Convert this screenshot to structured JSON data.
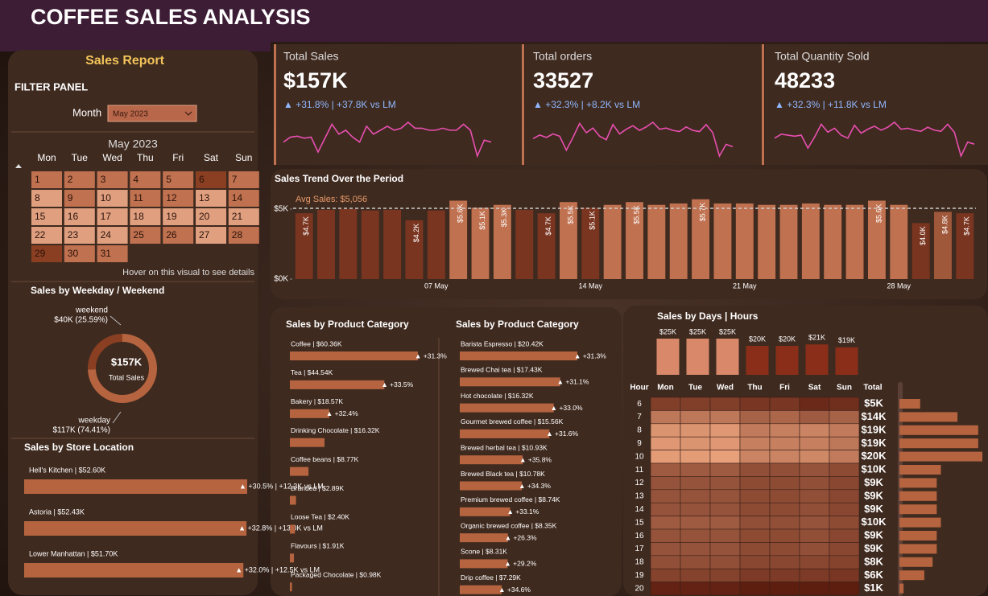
{
  "header": {
    "title": "COFFEE SALES ANALYSIS"
  },
  "filter": {
    "title": "Sales Report",
    "panel_title": "FILTER PANEL",
    "month_label": "Month",
    "month_value": "May 2023"
  },
  "calendar": {
    "title": "May 2023",
    "weekdays": [
      "Mon",
      "Tue",
      "Wed",
      "Thu",
      "Fri",
      "Sat",
      "Sun"
    ],
    "days": [
      1,
      2,
      3,
      4,
      5,
      6,
      7,
      8,
      9,
      10,
      11,
      12,
      13,
      14,
      15,
      16,
      17,
      18,
      19,
      20,
      21,
      22,
      23,
      24,
      25,
      26,
      27,
      28,
      29,
      30,
      31
    ],
    "day_colors": [
      "#c0714f",
      "#c0714f",
      "#c0714f",
      "#c0714f",
      "#c0714f",
      "#8a3f22",
      "#c0714f",
      "#e0a080",
      "#c0714f",
      "#e0a080",
      "#c0714f",
      "#c0714f",
      "#e0a080",
      "#c0714f",
      "#e0a080",
      "#e0a080",
      "#e0a080",
      "#e0a080",
      "#e0a080",
      "#e0a080",
      "#e0a080",
      "#e0a080",
      "#e0a080",
      "#e0a080",
      "#c0714f",
      "#c0714f",
      "#e0a080",
      "#c0714f",
      "#8a3f22",
      "#c0714f",
      "#c0714f"
    ],
    "hint": "Hover on this visual to see details"
  },
  "weekday_weekend": {
    "title": "Sales by Weekday / Weekend",
    "center_value": "$157K",
    "center_label": "Total Sales",
    "categories": [
      "weekend",
      "weekday"
    ],
    "values": [
      25.59,
      74.41
    ],
    "value_labels": [
      "$40K (25.59%)",
      "$117K (74.41%)"
    ],
    "colors": [
      "#8a3f22",
      "#b5643f"
    ]
  },
  "store_location": {
    "title": "Sales by Store Location",
    "labels": [
      "Hell's Kitchen | $52.60K",
      "Astoria | $52.43K",
      "Lower Manhattan | $51.70K"
    ],
    "values": [
      52.6,
      52.43,
      51.7
    ],
    "growth": [
      "▲ +30.5% | +12.3K vs LM",
      "▲ +32.8% | +13.0K vs LM",
      "▲ +32.0% | +12.5K vs LM"
    ],
    "color": "#b5643f"
  },
  "kpis": [
    {
      "title": "Total Sales",
      "value": "$157K",
      "change": "▲ +31.8% | +37.8K vs LM",
      "trend": [
        4.7,
        4.95,
        5.0,
        4.9,
        4.95,
        4.2,
        4.9,
        5.6,
        5.1,
        5.3,
        4.95,
        4.7,
        5.5,
        5.1,
        5.3,
        5.5,
        5.3,
        5.4,
        5.7,
        5.4,
        5.4,
        5.3,
        5.3,
        5.4,
        5.3,
        5.3,
        5.6,
        5.3,
        4.0,
        4.8,
        4.7
      ]
    },
    {
      "title": "Total orders",
      "value": "33527",
      "change": "▲ +32.3% | +8.2K vs LM",
      "trend": [
        1050,
        1080,
        1060,
        1090,
        1070,
        950,
        1060,
        1180,
        1100,
        1140,
        1070,
        1040,
        1170,
        1090,
        1130,
        1160,
        1120,
        1150,
        1190,
        1130,
        1140,
        1120,
        1110,
        1150,
        1120,
        1110,
        1170,
        1100,
        900,
        1000,
        980
      ]
    },
    {
      "title": "Total Quantity Sold",
      "value": "48233",
      "change": "▲ +32.3% | +11.8K vs LM",
      "trend": [
        1500,
        1540,
        1530,
        1520,
        1530,
        1400,
        1510,
        1640,
        1560,
        1600,
        1530,
        1500,
        1630,
        1550,
        1590,
        1620,
        1580,
        1610,
        1660,
        1590,
        1600,
        1580,
        1570,
        1610,
        1580,
        1570,
        1640,
        1560,
        1320,
        1460,
        1440
      ]
    }
  ],
  "sparkline_color": "#e84fb0",
  "sales_trend": {
    "type": "bar",
    "title": "Sales Trend Over the Period",
    "avg_label": "Avg Sales: $5,056",
    "avg": 5056,
    "categories": [
      null,
      null,
      null,
      null,
      null,
      null,
      "07 May",
      null,
      null,
      null,
      null,
      null,
      null,
      "14 May",
      null,
      null,
      null,
      null,
      null,
      null,
      "21 May",
      null,
      null,
      null,
      null,
      null,
      null,
      "28 May",
      null,
      null,
      null
    ],
    "values": [
      4700,
      4950,
      5000,
      4900,
      4950,
      4200,
      4900,
      5600,
      5100,
      5300,
      4950,
      4700,
      5500,
      5100,
      5300,
      5500,
      5300,
      5400,
      5700,
      5400,
      5400,
      5300,
      5300,
      5400,
      5300,
      5300,
      5600,
      5300,
      4000,
      4800,
      4700
    ],
    "value_labels": [
      "$4.7K",
      null,
      null,
      null,
      null,
      "$4.2K",
      null,
      "$5.6K",
      "$5.1K",
      "$5.3K",
      null,
      "$4.7K",
      "$5.5K",
      "$5.1K",
      null,
      "$5.5K",
      null,
      null,
      "$5.7K",
      null,
      null,
      null,
      null,
      null,
      null,
      null,
      "$5.6K",
      null,
      "$4.0K",
      "$4.8K",
      "$4.7K"
    ],
    "colors": [
      "#7a3520",
      "#7a3520",
      "#7a3520",
      "#7a3520",
      "#7a3520",
      "#7a3520",
      "#7a3520",
      "#c0714f",
      "#c0714f",
      "#c0714f",
      "#7a3520",
      "#7a3520",
      "#c0714f",
      "#7a3520",
      "#c0714f",
      "#c0714f",
      "#c0714f",
      "#c0714f",
      "#c0714f",
      "#c0714f",
      "#c0714f",
      "#c0714f",
      "#c0714f",
      "#c0714f",
      "#c0714f",
      "#c0714f",
      "#c0714f",
      "#c0714f",
      "#7a3520",
      "#a0583a",
      "#7a3520"
    ],
    "ylim": [
      0,
      5800
    ],
    "yticks": [
      {
        "value": 0,
        "label": "$0K"
      },
      {
        "value": 5000,
        "label": "$5K"
      }
    ]
  },
  "product_category": {
    "title": "Sales by Product Category",
    "labels": [
      "Coffee | $60.36K",
      "Tea | $44.54K",
      "Bakery | $18.57K",
      "Drinking Chocolate | $16.32K",
      "Coffee beans | $8.77K",
      "Branded | $2.89K",
      "Loose Tea | $2.40K",
      "Flavours | $1.91K",
      "Packaged Chocolate | $0.98K"
    ],
    "values": [
      60.36,
      44.54,
      18.57,
      16.32,
      8.77,
      2.89,
      2.4,
      1.91,
      0.98
    ],
    "growth": [
      "▲ +31.3%",
      "▲ +33.5%",
      "▲ +32.4%",
      null,
      null,
      null,
      null,
      null,
      null
    ],
    "color": "#b5643f"
  },
  "product_type": {
    "title": "Sales by Product Category",
    "labels": [
      "Barista Espresso | $20.42K",
      "Brewed Chai tea | $17.43K",
      "Hot chocolate | $16.32K",
      "Gourmet brewed coffee | $15.56K",
      "Brewed herbal tea | $10.93K",
      "Brewed Black tea | $10.78K",
      "Premium brewed coffee | $8.74K",
      "Organic brewed coffee | $8.35K",
      "Scone | $8.31K",
      "Drip coffee | $7.29K"
    ],
    "values": [
      20.42,
      17.43,
      16.32,
      15.56,
      10.93,
      10.78,
      8.74,
      8.35,
      8.31,
      7.29
    ],
    "growth": [
      "▲ +31.3%",
      "▲ +31.1%",
      "▲ +33.0%",
      "▲ +31.6%",
      "▲ +35.8%",
      "▲ +34.3%",
      "▲ +33.1%",
      "▲ +26.3%",
      "▲ +29.2%",
      "▲ +34.6%"
    ],
    "color": "#b5643f"
  },
  "days_hours": {
    "title": "Sales by Days | Hours",
    "days": [
      "Mon",
      "Tue",
      "Wed",
      "Thu",
      "Fri",
      "Sat",
      "Sun"
    ],
    "day_totals": [
      25,
      25,
      25,
      20,
      20,
      21,
      19
    ],
    "day_total_labels": [
      "$25K",
      "$25K",
      "$25K",
      "$20K",
      "$20K",
      "$21K",
      "$19K"
    ],
    "day_colors": [
      "#d9896a",
      "#d9896a",
      "#d9896a",
      "#8a2e1a",
      "#8a2e1a",
      "#8a2e1a",
      "#8a2e1a"
    ],
    "hour_label": "Hour",
    "total_label": "Total",
    "hours": [
      6,
      7,
      8,
      9,
      10,
      11,
      12,
      13,
      14,
      15,
      16,
      17,
      18,
      19,
      20
    ],
    "heat": [
      [
        0.9,
        0.9,
        0.9,
        0.7,
        0.7,
        0.4,
        0.5
      ],
      [
        2.3,
        2.3,
        2.3,
        1.8,
        1.9,
        1.6,
        1.8
      ],
      [
        3.0,
        3.0,
        3.1,
        2.4,
        2.5,
        2.6,
        2.4
      ],
      [
        3.1,
        3.0,
        3.1,
        2.5,
        2.5,
        2.5,
        2.3
      ],
      [
        3.2,
        3.2,
        3.3,
        2.6,
        2.6,
        2.7,
        2.4
      ],
      [
        1.6,
        1.6,
        1.6,
        1.3,
        1.3,
        1.4,
        1.2
      ],
      [
        1.4,
        1.4,
        1.4,
        1.2,
        1.2,
        1.3,
        1.1
      ],
      [
        1.4,
        1.4,
        1.4,
        1.2,
        1.2,
        1.3,
        1.1
      ],
      [
        1.4,
        1.4,
        1.4,
        1.2,
        1.2,
        1.3,
        1.1
      ],
      [
        1.6,
        1.6,
        1.6,
        1.3,
        1.3,
        1.4,
        1.2
      ],
      [
        1.4,
        1.4,
        1.4,
        1.2,
        1.2,
        1.3,
        1.1
      ],
      [
        1.4,
        1.4,
        1.4,
        1.2,
        1.2,
        1.3,
        1.1
      ],
      [
        1.3,
        1.3,
        1.3,
        1.1,
        1.1,
        1.1,
        1.0
      ],
      [
        1.0,
        1.0,
        1.0,
        0.8,
        0.8,
        0.8,
        0.7
      ],
      [
        0.2,
        0.2,
        0.2,
        0.1,
        0.1,
        0.1,
        0.1
      ]
    ],
    "heat_colors": [
      "#5a1a0c",
      "#e8a07a"
    ],
    "hour_totals": [
      5,
      14,
      19,
      19,
      20,
      10,
      9,
      9,
      9,
      10,
      9,
      9,
      8,
      6,
      1
    ],
    "hour_total_labels": [
      "$5K",
      "$14K",
      "$19K",
      "$19K",
      "$20K",
      "$10K",
      "$9K",
      "$9K",
      "$9K",
      "$10K",
      "$9K",
      "$9K",
      "$8K",
      "$6K",
      "$1K"
    ],
    "hour_bar_color": "#b5643f"
  }
}
